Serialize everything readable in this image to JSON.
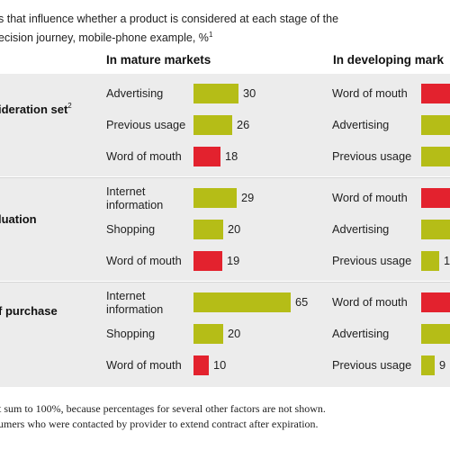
{
  "header": {
    "line1": "s that influence whether a product is considered at each stage of the",
    "line2_pre": "ecision journey, mobile-phone example, %",
    "line2_sup": "1"
  },
  "columns": {
    "mature": "In mature markets",
    "developing": "In developing mark"
  },
  "colors": {
    "positive": "#b5bd17",
    "word_of_mouth": "#e3222e",
    "band": "#ececec"
  },
  "footnotes": {
    "line1": "t sum to 100%, because percentages for several other factors are not shown.",
    "line2": "umers who were contacted by provider to extend contract after expiration."
  },
  "chart_data": {
    "type": "bar",
    "title": "",
    "unit": "%",
    "stages": [
      {
        "label": "ideration set",
        "sup": "2",
        "mature": [
          {
            "factor": "Advertising",
            "value": 30
          },
          {
            "factor": "Previous usage",
            "value": 26
          },
          {
            "factor": "Word of mouth",
            "value": 18
          }
        ],
        "developing": [
          {
            "factor": "Word of mouth"
          },
          {
            "factor": "Advertising"
          },
          {
            "factor": "Previous usage"
          }
        ]
      },
      {
        "label": "luation",
        "sup": "",
        "mature": [
          {
            "factor": "Internet information",
            "value": 29
          },
          {
            "factor": "Shopping",
            "value": 20
          },
          {
            "factor": "Word of mouth",
            "value": 19
          }
        ],
        "developing": [
          {
            "factor": "Word of mouth"
          },
          {
            "factor": "Advertising"
          },
          {
            "factor": "Previous usage",
            "value_text": "1"
          }
        ]
      },
      {
        "label": "f purchase",
        "sup": "",
        "mature": [
          {
            "factor": "Internet information",
            "value": 65
          },
          {
            "factor": "Shopping",
            "value": 20
          },
          {
            "factor": "Word of mouth",
            "value": 10
          }
        ],
        "developing": [
          {
            "factor": "Word of mouth"
          },
          {
            "factor": "Advertising"
          },
          {
            "factor": "Previous usage",
            "value": 9
          }
        ]
      }
    ]
  }
}
